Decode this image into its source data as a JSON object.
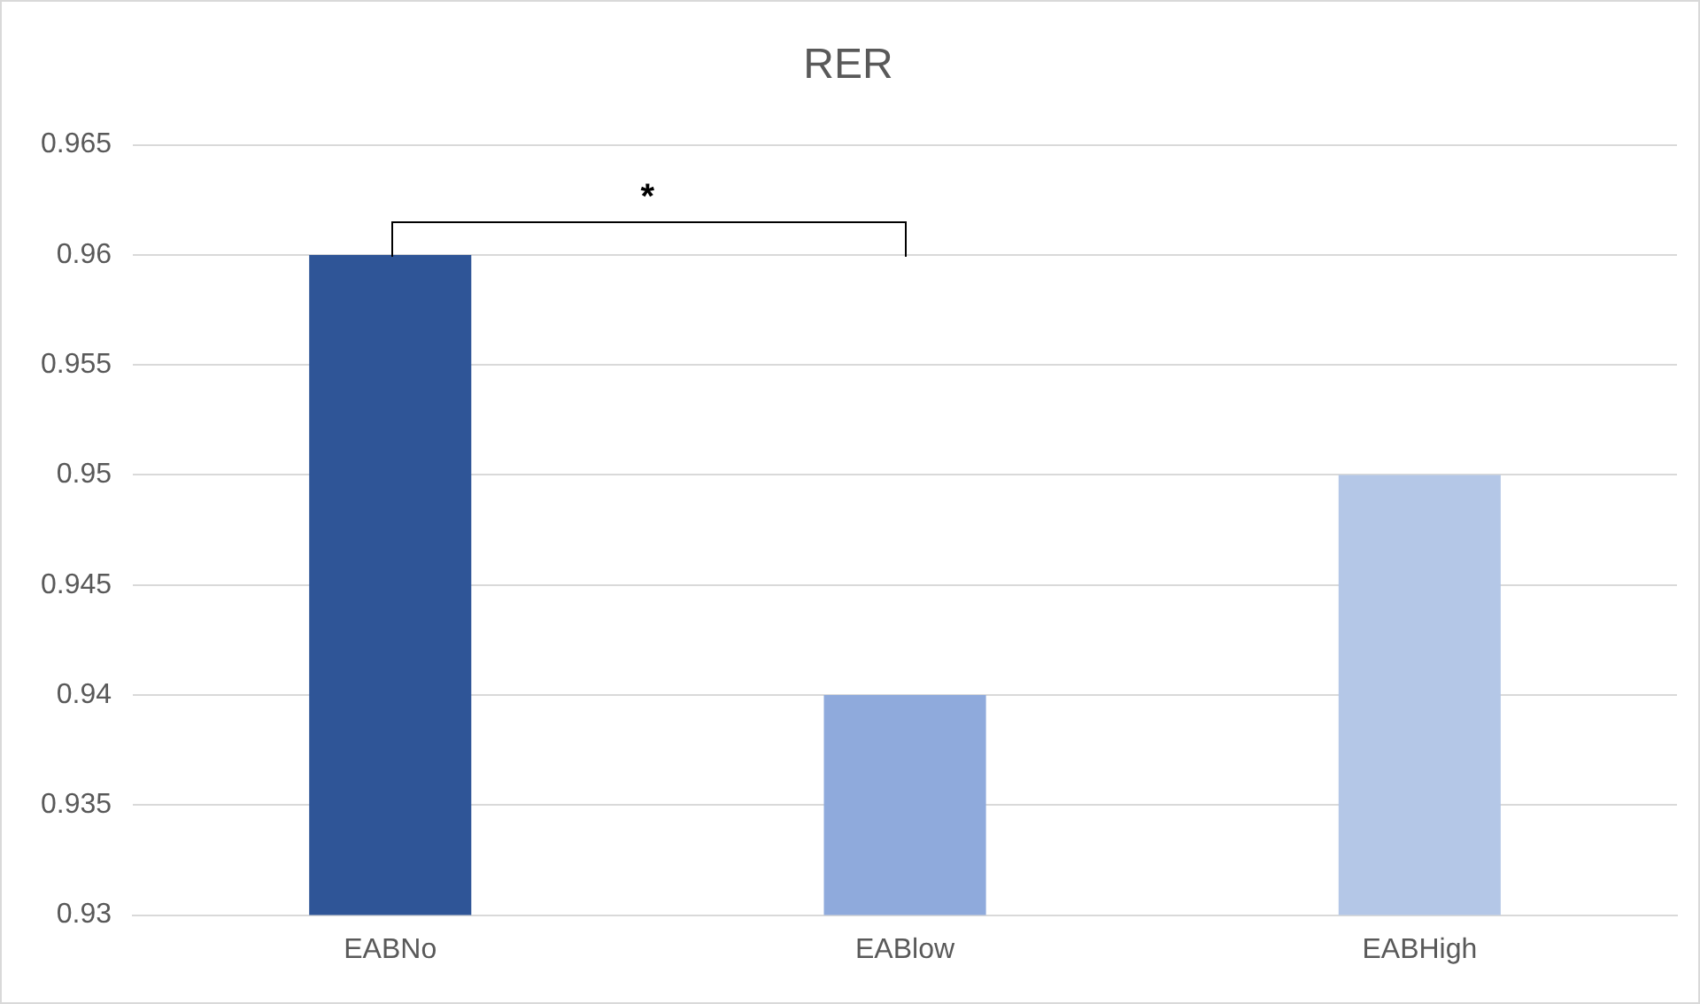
{
  "chart_data": {
    "type": "bar",
    "title": "RER",
    "categories": [
      "EABNo",
      "EABlow",
      "EABHigh"
    ],
    "values": [
      0.96,
      0.94,
      0.95
    ],
    "colors": [
      "#2f5597",
      "#8faadc",
      "#b4c7e7"
    ],
    "ylim": [
      0.93,
      0.965
    ],
    "yticks": [
      0.93,
      0.935,
      0.94,
      0.945,
      0.95,
      0.955,
      0.96,
      0.965
    ],
    "grid": "y",
    "annotations": [
      "*"
    ]
  }
}
